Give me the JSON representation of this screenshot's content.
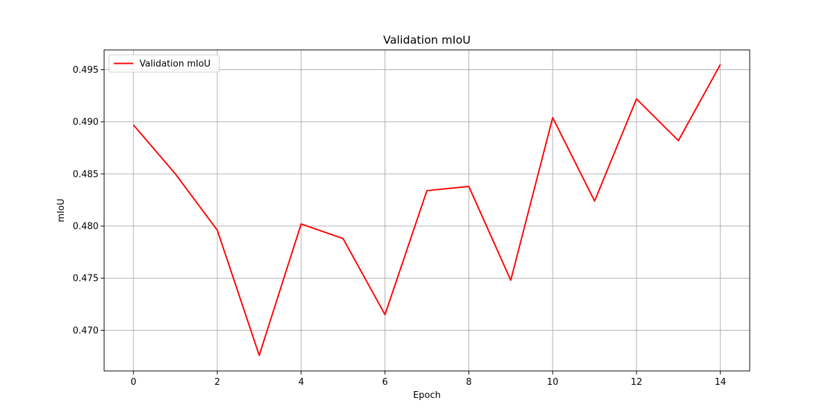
{
  "chart_data": {
    "type": "line",
    "title": "Validation mIoU",
    "xlabel": "Epoch",
    "ylabel": "mIoU",
    "xlim": [
      -0.7,
      14.7
    ],
    "ylim": [
      0.4661,
      0.4969
    ],
    "xticks": [
      0,
      2,
      4,
      6,
      8,
      10,
      12,
      14
    ],
    "xtick_labels": [
      "0",
      "2",
      "4",
      "6",
      "8",
      "10",
      "12",
      "14"
    ],
    "yticks": [
      0.47,
      0.475,
      0.48,
      0.485,
      0.49,
      0.495
    ],
    "ytick_labels": [
      "0.470",
      "0.475",
      "0.480",
      "0.485",
      "0.490",
      "0.495"
    ],
    "grid": true,
    "legend_position": "top-left",
    "series": [
      {
        "name": "Validation mIoU",
        "color": "#ff0000",
        "x": [
          0,
          1,
          2,
          3,
          4,
          5,
          6,
          7,
          8,
          9,
          10,
          11,
          12,
          13,
          14
        ],
        "y": [
          0.4897,
          0.485,
          0.4796,
          0.4676,
          0.4802,
          0.4788,
          0.4715,
          0.4834,
          0.4838,
          0.4748,
          0.4904,
          0.4824,
          0.4922,
          0.4882,
          0.4955
        ]
      }
    ]
  }
}
